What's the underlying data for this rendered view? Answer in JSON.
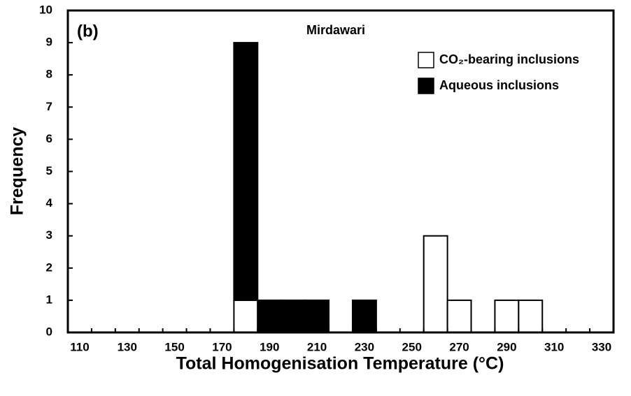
{
  "chart_data": {
    "type": "histogram",
    "title": "Mirdawari",
    "annotation": "(b)",
    "x_label": "Total Homogenisation Temperature (°C)",
    "y_label": "Frequency",
    "bins": [
      105,
      115,
      125,
      135,
      145,
      155,
      165,
      175,
      185,
      195,
      205,
      215,
      225,
      235,
      245,
      255,
      265,
      275,
      285,
      295,
      305,
      315,
      325,
      335
    ],
    "series": [
      {
        "name": "CO₂-bearing inclusions",
        "color": "#ffffff",
        "values": [
          0,
          0,
          0,
          0,
          0,
          0,
          0,
          1,
          0,
          0,
          0,
          0,
          0,
          0,
          0,
          3,
          1,
          0,
          1,
          1,
          0,
          0,
          0
        ]
      },
      {
        "name": "Aqueous inclusions",
        "color": "#000000",
        "values": [
          0,
          0,
          0,
          0,
          0,
          0,
          0,
          8,
          1,
          1,
          1,
          0,
          1,
          0,
          0,
          0,
          0,
          0,
          0,
          0,
          0,
          0,
          0
        ]
      }
    ],
    "stacked": true,
    "xlim": [
      105,
      335
    ],
    "ylim": [
      0,
      10
    ],
    "xticks": [
      110,
      130,
      150,
      170,
      190,
      210,
      230,
      250,
      270,
      290,
      310,
      330
    ],
    "yticks": [
      0,
      1,
      2,
      3,
      4,
      5,
      6,
      7,
      8,
      9,
      10
    ],
    "legend": "upper right"
  }
}
